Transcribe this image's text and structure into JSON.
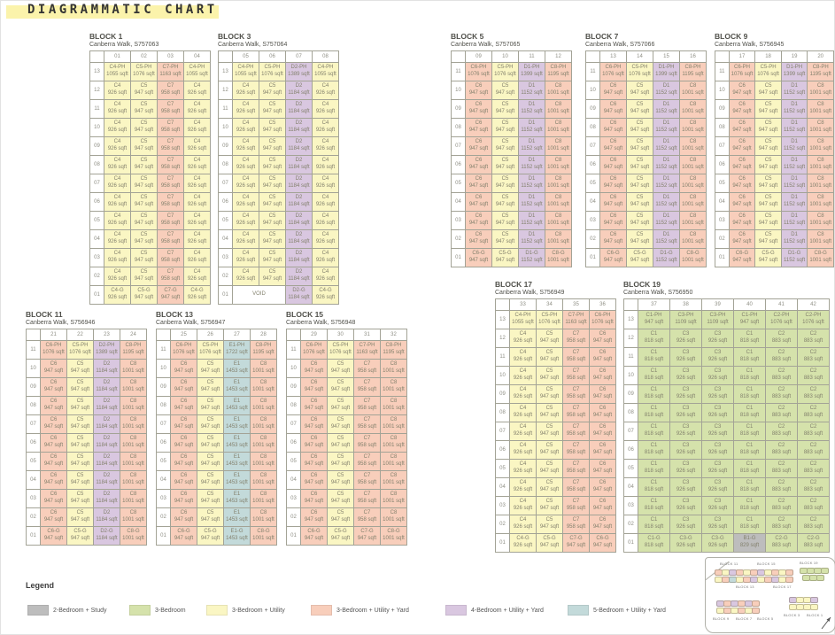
{
  "page": {
    "title": "DIAGRAMMATIC CHART"
  },
  "legend": {
    "title": "Legend",
    "items": [
      {
        "key": "gray",
        "color": "#bdbdbd",
        "label": "2-Bedroom + Study"
      },
      {
        "key": "green",
        "color": "#d5e2ab",
        "label": "3-Bedroom"
      },
      {
        "key": "yellow",
        "color": "#faf6c3",
        "label": "3-Bedroom + Utility"
      },
      {
        "key": "salmon",
        "color": "#f8cebb",
        "label": "3-Bedroom + Utility + Yard"
      },
      {
        "key": "purple",
        "color": "#d9c7e0",
        "label": "4-Bedroom + Utility + Yard"
      },
      {
        "key": "teal",
        "color": "#c3dada",
        "label": "5-Bedroom + Utility + Yard"
      }
    ]
  },
  "blocks": [
    {
      "title": "BLOCK 1",
      "address": "Canberra Walk, S757063",
      "stacks": [
        "01",
        "02",
        "03",
        "04"
      ],
      "floors": [
        "13",
        "12",
        "11",
        "10",
        "09",
        "08",
        "07",
        "06",
        "05",
        "04",
        "03",
        "02",
        "01"
      ],
      "columns": [
        {
          "color": "yellow",
          "ph": {
            "t": "C4-PH",
            "s": "1055 sqft"
          },
          "typ": {
            "t": "C4",
            "s": "926 sqft"
          },
          "g": {
            "t": "C4-G",
            "s": "926 sqft"
          }
        },
        {
          "color": "yellow",
          "ph": {
            "t": "C5-PH",
            "s": "1076 sqft"
          },
          "typ": {
            "t": "C5",
            "s": "947 sqft"
          },
          "g": {
            "t": "C5-G",
            "s": "947 sqft"
          }
        },
        {
          "color": "salmon",
          "ph": {
            "t": "C7-PH",
            "s": "1163 sqft"
          },
          "typ": {
            "t": "C7",
            "s": "958 sqft"
          },
          "g": {
            "t": "C7-G",
            "s": "947 sqft"
          }
        },
        {
          "color": "yellow",
          "ph": {
            "t": "C4-PH",
            "s": "1055 sqft"
          },
          "typ": {
            "t": "C4",
            "s": "926 sqft"
          },
          "g": {
            "t": "C4-G",
            "s": "926 sqft"
          }
        }
      ]
    },
    {
      "title": "BLOCK 3",
      "address": "Canberra Walk, S757064",
      "stacks": [
        "05",
        "06",
        "07",
        "08"
      ],
      "floors": [
        "13",
        "12",
        "11",
        "10",
        "09",
        "08",
        "07",
        "06",
        "05",
        "04",
        "03",
        "02",
        "01"
      ],
      "columns": [
        {
          "color": "yellow",
          "ph": {
            "t": "C4-PH",
            "s": "1055 sqft"
          },
          "typ": {
            "t": "C4",
            "s": "926 sqft"
          },
          "g": {
            "t": "",
            "s": ""
          }
        },
        {
          "color": "yellow",
          "ph": {
            "t": "C5-PH",
            "s": "1076 sqft"
          },
          "typ": {
            "t": "C5",
            "s": "947 sqft"
          },
          "g": {
            "t": "",
            "s": ""
          }
        },
        {
          "color": "purple",
          "ph": {
            "t": "D2-PH",
            "s": "1389 sqft"
          },
          "typ": {
            "t": "D2",
            "s": "1184 sqft"
          },
          "g": {
            "t": "D2-G",
            "s": "1184 sqft"
          }
        },
        {
          "color": "yellow",
          "ph": {
            "t": "C4-PH",
            "s": "1055 sqft"
          },
          "typ": {
            "t": "C4",
            "s": "926 sqft"
          },
          "g": {
            "t": "C4-G",
            "s": "926 sqft"
          }
        }
      ],
      "ground_row": [
        {
          "t": "VOID",
          "s": "",
          "color": "void",
          "span": 2
        },
        {
          "t": "D2-G",
          "s": "1184 sqft",
          "color": "purple"
        },
        {
          "t": "C4-G",
          "s": "926 sqft",
          "color": "yellow"
        }
      ]
    },
    {
      "title": "BLOCK 5",
      "address": "Canberra Walk, S757065",
      "stacks": [
        "09",
        "10",
        "11",
        "12"
      ],
      "floors": [
        "11",
        "10",
        "09",
        "08",
        "07",
        "06",
        "05",
        "04",
        "03",
        "02",
        "01"
      ],
      "columns": [
        {
          "color": "salmon",
          "ph": {
            "t": "C6-PH",
            "s": "1076 sqft"
          },
          "typ": {
            "t": "C6",
            "s": "947 sqft"
          },
          "g": {
            "t": "C6-G",
            "s": "947 sqft"
          }
        },
        {
          "color": "yellow",
          "ph": {
            "t": "C5-PH",
            "s": "1076 sqft"
          },
          "typ": {
            "t": "C5",
            "s": "947 sqft"
          },
          "g": {
            "t": "C5-G",
            "s": "947 sqft"
          }
        },
        {
          "color": "purple",
          "ph": {
            "t": "D1-PH",
            "s": "1399 sqft"
          },
          "typ": {
            "t": "D1",
            "s": "1152 sqft"
          },
          "g": {
            "t": "D1-G",
            "s": "1152 sqft"
          }
        },
        {
          "color": "salmon",
          "ph": {
            "t": "C8-PH",
            "s": "1195 sqft"
          },
          "typ": {
            "t": "C8",
            "s": "1001 sqft"
          },
          "g": {
            "t": "C8-G",
            "s": "1001 sqft"
          }
        }
      ]
    },
    {
      "title": "BLOCK 7",
      "address": "Canberra Walk, S757066",
      "stacks": [
        "13",
        "14",
        "15",
        "16"
      ],
      "floors": [
        "11",
        "10",
        "09",
        "08",
        "07",
        "06",
        "05",
        "04",
        "03",
        "02",
        "01"
      ],
      "columns": [
        {
          "color": "salmon",
          "ph": {
            "t": "C6-PH",
            "s": "1076 sqft"
          },
          "typ": {
            "t": "C6",
            "s": "947 sqft"
          },
          "g": {
            "t": "C6-G",
            "s": "947 sqft"
          }
        },
        {
          "color": "yellow",
          "ph": {
            "t": "C5-PH",
            "s": "1076 sqft"
          },
          "typ": {
            "t": "C5",
            "s": "947 sqft"
          },
          "g": {
            "t": "C5-G",
            "s": "947 sqft"
          }
        },
        {
          "color": "purple",
          "ph": {
            "t": "D1-PH",
            "s": "1399 sqft"
          },
          "typ": {
            "t": "D1",
            "s": "1152 sqft"
          },
          "g": {
            "t": "D1-G",
            "s": "1152 sqft"
          }
        },
        {
          "color": "salmon",
          "ph": {
            "t": "C8-PH",
            "s": "1195 sqft"
          },
          "typ": {
            "t": "C8",
            "s": "1001 sqft"
          },
          "g": {
            "t": "C8-G",
            "s": "1001 sqft"
          }
        }
      ]
    },
    {
      "title": "BLOCK 9",
      "address": "Canberra Walk, S756945",
      "stacks": [
        "17",
        "18",
        "19",
        "20"
      ],
      "floors": [
        "11",
        "10",
        "09",
        "08",
        "07",
        "06",
        "05",
        "04",
        "03",
        "02",
        "01"
      ],
      "columns": [
        {
          "color": "salmon",
          "ph": {
            "t": "C6-PH",
            "s": "1076 sqft"
          },
          "typ": {
            "t": "C6",
            "s": "947 sqft"
          },
          "g": {
            "t": "C6-G",
            "s": "947 sqft"
          }
        },
        {
          "color": "yellow",
          "ph": {
            "t": "C5-PH",
            "s": "1076 sqft"
          },
          "typ": {
            "t": "C5",
            "s": "947 sqft"
          },
          "g": {
            "t": "C5-G",
            "s": "947 sqft"
          }
        },
        {
          "color": "purple",
          "ph": {
            "t": "D1-PH",
            "s": "1399 sqft"
          },
          "typ": {
            "t": "D1",
            "s": "1152 sqft"
          },
          "g": {
            "t": "D1-G",
            "s": "1152 sqft"
          }
        },
        {
          "color": "salmon",
          "ph": {
            "t": "C8-PH",
            "s": "1195 sqft"
          },
          "typ": {
            "t": "C8",
            "s": "1001 sqft"
          },
          "g": {
            "t": "C8-G",
            "s": "1001 sqft"
          }
        }
      ]
    },
    {
      "title": "BLOCK 11",
      "address": "Canberra Walk, S756946",
      "stacks": [
        "21",
        "22",
        "23",
        "24"
      ],
      "floors": [
        "11",
        "10",
        "09",
        "08",
        "07",
        "06",
        "05",
        "04",
        "03",
        "02",
        "01"
      ],
      "columns": [
        {
          "color": "salmon",
          "ph": {
            "t": "C6-PH",
            "s": "1076 sqft"
          },
          "typ": {
            "t": "C6",
            "s": "947 sqft"
          },
          "g": {
            "t": "C6-G",
            "s": "947 sqft"
          }
        },
        {
          "color": "yellow",
          "ph": {
            "t": "C5-PH",
            "s": "1076 sqft"
          },
          "typ": {
            "t": "C5",
            "s": "947 sqft"
          },
          "g": {
            "t": "C5-G",
            "s": "947 sqft"
          }
        },
        {
          "color": "purple",
          "ph": {
            "t": "D2-PH",
            "s": "1389 sqft"
          },
          "typ": {
            "t": "D2",
            "s": "1184 sqft"
          },
          "g": {
            "t": "D2-G",
            "s": "1184 sqft"
          }
        },
        {
          "color": "salmon",
          "ph": {
            "t": "C8-PH",
            "s": "1195 sqft"
          },
          "typ": {
            "t": "C8",
            "s": "1001 sqft"
          },
          "g": {
            "t": "C8-G",
            "s": "1001 sqft"
          }
        }
      ]
    },
    {
      "title": "BLOCK 13",
      "address": "Canberra Walk, S756947",
      "stacks": [
        "25",
        "26",
        "27",
        "28"
      ],
      "floors": [
        "11",
        "10",
        "09",
        "08",
        "07",
        "06",
        "05",
        "04",
        "03",
        "02",
        "01"
      ],
      "columns": [
        {
          "color": "salmon",
          "ph": {
            "t": "C6-PH",
            "s": "1076 sqft"
          },
          "typ": {
            "t": "C6",
            "s": "947 sqft"
          },
          "g": {
            "t": "C6-G",
            "s": "947 sqft"
          }
        },
        {
          "color": "yellow",
          "ph": {
            "t": "C5-PH",
            "s": "1076 sqft"
          },
          "typ": {
            "t": "C5",
            "s": "947 sqft"
          },
          "g": {
            "t": "C5-G",
            "s": "947 sqft"
          }
        },
        {
          "color": "teal",
          "ph": {
            "t": "E1-PH",
            "s": "1722 sqft"
          },
          "typ": {
            "t": "E1",
            "s": "1453 sqft"
          },
          "g": {
            "t": "E1-G",
            "s": "1453 sqft"
          }
        },
        {
          "color": "salmon",
          "ph": {
            "t": "C8-PH",
            "s": "1195 sqft"
          },
          "typ": {
            "t": "C8",
            "s": "1001 sqft"
          },
          "g": {
            "t": "C8-G",
            "s": "1001 sqft"
          }
        }
      ]
    },
    {
      "title": "BLOCK 15",
      "address": "Canberra Walk, S756948",
      "stacks": [
        "29",
        "30",
        "31",
        "32"
      ],
      "floors": [
        "11",
        "10",
        "09",
        "08",
        "07",
        "06",
        "05",
        "04",
        "03",
        "02",
        "01"
      ],
      "columns": [
        {
          "color": "salmon",
          "ph": {
            "t": "C6-PH",
            "s": "1076 sqft"
          },
          "typ": {
            "t": "C6",
            "s": "947 sqft"
          },
          "g": {
            "t": "C6-G",
            "s": "947 sqft"
          }
        },
        {
          "color": "yellow",
          "ph": {
            "t": "C5-PH",
            "s": "1076 sqft"
          },
          "typ": {
            "t": "C5",
            "s": "947 sqft"
          },
          "g": {
            "t": "C5-G",
            "s": "947 sqft"
          }
        },
        {
          "color": "salmon",
          "ph": {
            "t": "C7-PH",
            "s": "1163 sqft"
          },
          "typ": {
            "t": "C7",
            "s": "958 sqft"
          },
          "g": {
            "t": "C7-G",
            "s": "947 sqft"
          }
        },
        {
          "color": "salmon",
          "ph": {
            "t": "C8-PH",
            "s": "1195 sqft"
          },
          "typ": {
            "t": "C8",
            "s": "1001 sqft"
          },
          "g": {
            "t": "C8-G",
            "s": "1001 sqft"
          }
        }
      ]
    },
    {
      "title": "BLOCK 17",
      "address": "Canberra Walk, S756949",
      "stacks": [
        "33",
        "34",
        "35",
        "36"
      ],
      "floors": [
        "13",
        "12",
        "11",
        "10",
        "09",
        "08",
        "07",
        "06",
        "05",
        "04",
        "03",
        "02",
        "01"
      ],
      "columns": [
        {
          "color": "yellow",
          "ph": {
            "t": "C4-PH",
            "s": "1055 sqft"
          },
          "typ": {
            "t": "C4",
            "s": "926 sqft"
          },
          "g": {
            "t": "C4-G",
            "s": "926 sqft"
          }
        },
        {
          "color": "yellow",
          "ph": {
            "t": "C5-PH",
            "s": "1076 sqft"
          },
          "typ": {
            "t": "C5",
            "s": "947 sqft"
          },
          "g": {
            "t": "C5-G",
            "s": "947 sqft"
          }
        },
        {
          "color": "salmon",
          "ph": {
            "t": "C7-PH",
            "s": "1163 sqft"
          },
          "typ": {
            "t": "C7",
            "s": "958 sqft"
          },
          "g": {
            "t": "C7-G",
            "s": "947 sqft"
          }
        },
        {
          "color": "salmon",
          "ph": {
            "t": "C6-PH",
            "s": "1076 sqft"
          },
          "typ": {
            "t": "C6",
            "s": "947 sqft"
          },
          "g": {
            "t": "C6-G",
            "s": "947 sqft"
          }
        }
      ]
    },
    {
      "title": "BLOCK 19",
      "address": "Canberra Walk, S756950",
      "stacks": [
        "37",
        "38",
        "39",
        "40",
        "41",
        "42"
      ],
      "floors": [
        "13",
        "12",
        "11",
        "10",
        "09",
        "08",
        "07",
        "06",
        "05",
        "04",
        "03",
        "02",
        "01"
      ],
      "columns": [
        {
          "color": "green",
          "ph": {
            "t": "C1-PH",
            "s": "947 sqft"
          },
          "typ": {
            "t": "C1",
            "s": "818 sqft"
          },
          "g": {
            "t": "C1-G",
            "s": "818 sqft"
          }
        },
        {
          "color": "green",
          "ph": {
            "t": "C3-PH",
            "s": "1109 sqft"
          },
          "typ": {
            "t": "C3",
            "s": "926 sqft"
          },
          "g": {
            "t": "C3-G",
            "s": "926 sqft"
          }
        },
        {
          "color": "green",
          "ph": {
            "t": "C3-PH",
            "s": "1109 sqft"
          },
          "typ": {
            "t": "C3",
            "s": "926 sqft"
          },
          "g": {
            "t": "C3-G",
            "s": "926 sqft"
          }
        },
        {
          "color": "green",
          "ph": {
            "t": "C1-PH",
            "s": "947 sqft"
          },
          "typ": {
            "t": "C1",
            "s": "818 sqft"
          },
          "g": {
            "t": "B1-G",
            "s": "829 sqft",
            "color": "gray"
          }
        },
        {
          "color": "green",
          "ph": {
            "t": "C2-PH",
            "s": "1076 sqft"
          },
          "typ": {
            "t": "C2",
            "s": "883 sqft"
          },
          "g": {
            "t": "C2-G",
            "s": "883 sqft"
          }
        },
        {
          "color": "green",
          "ph": {
            "t": "C2-PH",
            "s": "1076 sqft"
          },
          "typ": {
            "t": "C2",
            "s": "883 sqft"
          },
          "g": {
            "t": "C2-G",
            "s": "883 sqft"
          }
        }
      ]
    }
  ],
  "sitemap": {
    "labels": [
      "BLOCK 11",
      "BLOCK 15",
      "BLOCK 19",
      "BLOCK 13",
      "BLOCK 17",
      "BLOCK 9",
      "BLOCK 7",
      "BLOCK 5",
      "BLOCK 3",
      "BLOCK 1"
    ],
    "clusters": [
      [
        "salmon",
        "yellow",
        "purple",
        "salmon",
        "yellow",
        "salmon",
        "purple",
        "yellow",
        "salmon",
        "yellow",
        "salmon"
      ],
      [
        "yellow",
        "salmon",
        "teal",
        "yellow",
        "salmon",
        "purple",
        "yellow",
        "salmon",
        "purple",
        "yellow",
        "salmon"
      ],
      [
        "green",
        "green",
        "green",
        "green"
      ],
      [
        "green",
        "green",
        "green"
      ],
      [
        "purple",
        "salmon",
        "purple",
        "salmon",
        "purple",
        "salmon"
      ],
      [
        "yellow",
        "salmon",
        "yellow",
        "salmon",
        "yellow",
        "salmon"
      ],
      [
        "purple",
        "yellow",
        "yellow",
        "purple"
      ],
      [
        "yellow",
        "yellow",
        "yellow",
        "yellow"
      ]
    ]
  }
}
